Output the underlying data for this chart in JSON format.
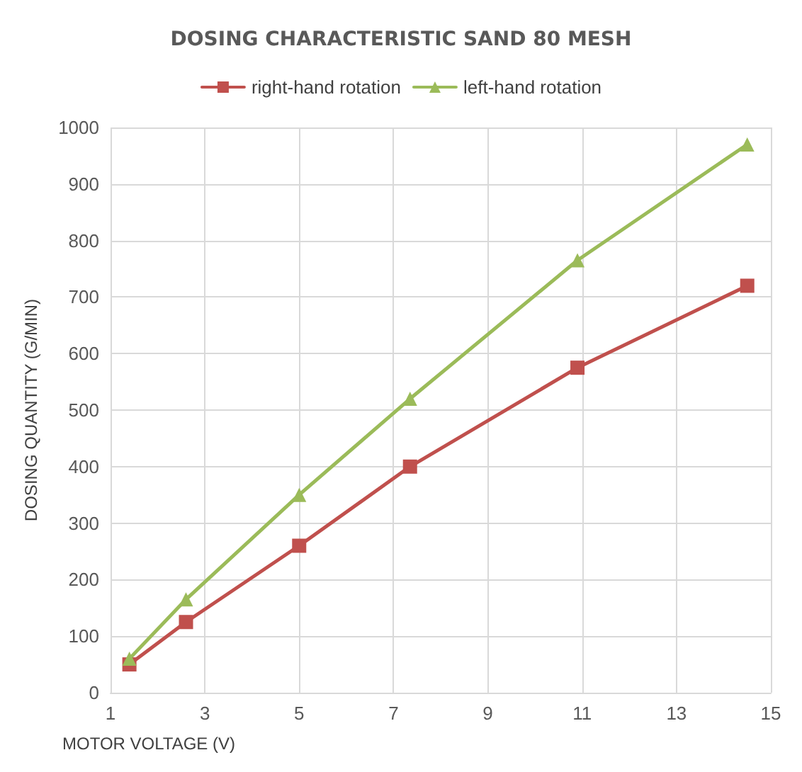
{
  "chart_data": {
    "type": "line",
    "title": "DOSING CHARACTERISTIC SAND 80 MESH",
    "xlabel": "MOTOR VOLTAGE (V)",
    "ylabel": "DOSING QUANTITY (G/MIN)",
    "x": [
      1.4,
      2.6,
      5.0,
      7.35,
      10.9,
      14.5
    ],
    "series": [
      {
        "name": "right-hand rotation",
        "color": "#c0504d",
        "marker": "square",
        "values": [
          50,
          125,
          260,
          400,
          575,
          720
        ]
      },
      {
        "name": "left-hand rotation",
        "color": "#9bbb59",
        "marker": "triangle",
        "values": [
          60,
          165,
          350,
          520,
          765,
          970
        ]
      }
    ],
    "xlim": [
      1,
      15
    ],
    "xticks": [
      1,
      3,
      5,
      7,
      9,
      11,
      13,
      15
    ],
    "ylim": [
      0,
      1000
    ],
    "yticks": [
      0,
      100,
      200,
      300,
      400,
      500,
      600,
      700,
      800,
      900,
      1000
    ],
    "grid": true,
    "legend": "top",
    "line_style": "solid"
  }
}
